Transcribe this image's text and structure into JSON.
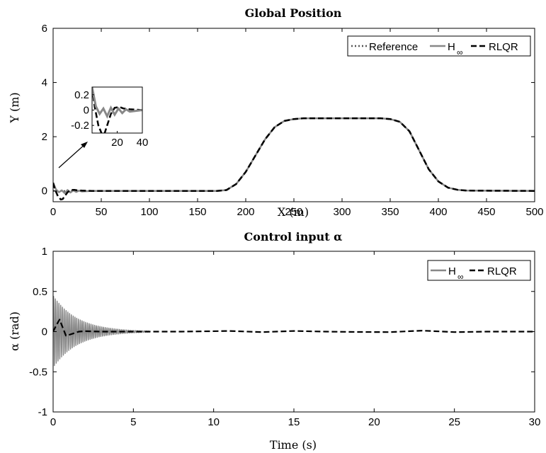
{
  "chart_data": [
    {
      "type": "line",
      "title": "Global Position",
      "xlabel": "X (m)",
      "ylabel": "Y (m)",
      "xlim": [
        0,
        500
      ],
      "ylim": [
        -0.4,
        6
      ],
      "xticks": [
        "0",
        "50",
        "100",
        "150",
        "200",
        "250",
        "300",
        "350",
        "400",
        "450",
        "500"
      ],
      "yticks": [
        "0",
        "2",
        "4",
        "6"
      ],
      "grid": false,
      "legend_placement": "top-right",
      "legend": [
        "Reference",
        "H",
        "RLQR"
      ],
      "legend_sub": "∞",
      "series": [
        {
          "name": "Reference",
          "style": "dotted",
          "color": "#555555",
          "x": [
            0,
            170,
            180,
            190,
            200,
            210,
            220,
            230,
            240,
            250,
            260,
            280,
            300,
            320,
            340,
            350,
            360,
            370,
            380,
            390,
            400,
            410,
            420,
            430,
            500
          ],
          "y": [
            0,
            0,
            0.03,
            0.25,
            0.7,
            1.3,
            1.9,
            2.35,
            2.58,
            2.65,
            2.68,
            2.68,
            2.68,
            2.68,
            2.68,
            2.65,
            2.55,
            2.2,
            1.5,
            0.8,
            0.35,
            0.12,
            0.04,
            0.01,
            0
          ]
        },
        {
          "name": "H",
          "style": "solid",
          "color": "#888888",
          "x": [
            0,
            3,
            6,
            9,
            12,
            15,
            18,
            21,
            24,
            27,
            30,
            40,
            60,
            100,
            170,
            180,
            190,
            200,
            210,
            220,
            230,
            240,
            250,
            260,
            280,
            300,
            320,
            340,
            350,
            360,
            370,
            380,
            390,
            400,
            410,
            420,
            430,
            500
          ],
          "y": [
            0.3,
            0.05,
            -0.05,
            0.02,
            -0.08,
            0.03,
            -0.06,
            0.02,
            -0.04,
            0.01,
            -0.02,
            0,
            0,
            0,
            0,
            0.03,
            0.25,
            0.7,
            1.3,
            1.9,
            2.35,
            2.58,
            2.65,
            2.68,
            2.68,
            2.68,
            2.68,
            2.68,
            2.65,
            2.55,
            2.2,
            1.5,
            0.8,
            0.35,
            0.12,
            0.04,
            0.01,
            0
          ]
        },
        {
          "name": "RLQR",
          "style": "dashed",
          "color": "#000000",
          "x": [
            0,
            2,
            5,
            8,
            10,
            12,
            15,
            18,
            22,
            25,
            30,
            40,
            100,
            170,
            180,
            190,
            200,
            210,
            220,
            230,
            240,
            250,
            260,
            280,
            300,
            320,
            340,
            350,
            360,
            370,
            380,
            390,
            400,
            410,
            420,
            430,
            500
          ],
          "y": [
            0.3,
            0.05,
            -0.2,
            -0.32,
            -0.3,
            -0.2,
            -0.05,
            0.03,
            0.04,
            0.02,
            0.01,
            0,
            0,
            0,
            0.03,
            0.25,
            0.7,
            1.3,
            1.9,
            2.35,
            2.58,
            2.65,
            2.68,
            2.68,
            2.68,
            2.68,
            2.68,
            2.65,
            2.55,
            2.2,
            1.5,
            0.8,
            0.35,
            0.12,
            0.04,
            0.01,
            0
          ]
        }
      ],
      "inset": {
        "xlim": [
          0,
          40
        ],
        "ylim": [
          -0.3,
          0.3
        ],
        "xticks": [
          "20",
          "40"
        ],
        "yticks": [
          "0.2",
          "0",
          "-0.2"
        ]
      }
    },
    {
      "type": "line",
      "title": "Control input α",
      "xlabel": "Time (s)",
      "ylabel": "α (rad)",
      "xlim": [
        0,
        30
      ],
      "ylim": [
        -1,
        1
      ],
      "xticks": [
        "0",
        "5",
        "10",
        "15",
        "20",
        "25",
        "30"
      ],
      "yticks": [
        "1",
        "0.5",
        "0",
        "-0.5",
        "-1"
      ],
      "grid": false,
      "legend_placement": "top-right",
      "legend": [
        "H",
        "RLQR"
      ],
      "legend_sub": "∞",
      "series": [
        {
          "name": "H",
          "style": "solid",
          "color": "#888888",
          "kind": "decaying-oscillation",
          "amplitude": 0.45,
          "tau": 1.5,
          "freq_hz": 9,
          "x_end": 6
        },
        {
          "name": "RLQR",
          "style": "dashed",
          "color": "#000000",
          "x": [
            0,
            0.2,
            0.4,
            0.6,
            0.8,
            1.0,
            1.3,
            1.6,
            2,
            3,
            5,
            8,
            11,
            13,
            15,
            17,
            19,
            21,
            23,
            25,
            27,
            30
          ],
          "y": [
            0,
            0.08,
            0.15,
            0.05,
            -0.05,
            -0.04,
            -0.02,
            0,
            0.005,
            0,
            0,
            0,
            0.008,
            -0.006,
            0.008,
            0,
            -0.004,
            -0.006,
            0.012,
            -0.006,
            0,
            0
          ]
        }
      ]
    }
  ]
}
